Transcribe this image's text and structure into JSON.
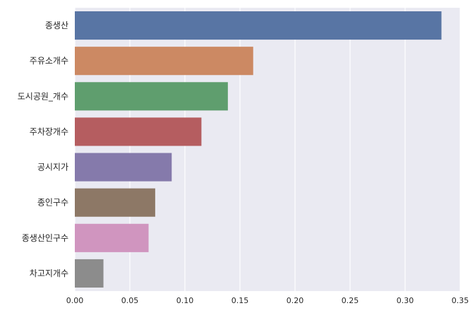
{
  "chart_data": {
    "type": "bar",
    "orientation": "horizontal",
    "categories": [
      "종생산",
      "주유소개수",
      "도시공원_개수",
      "주차장개수",
      "공시지가",
      "종인구수",
      "종생산인구수",
      "차고지개수"
    ],
    "values": [
      0.333,
      0.162,
      0.139,
      0.115,
      0.088,
      0.073,
      0.067,
      0.026
    ],
    "colors": [
      "#5875a4",
      "#cc8963",
      "#5f9e6e",
      "#b55d60",
      "#857aab",
      "#8d7866",
      "#d095bf",
      "#8c8c8c"
    ],
    "xlim": [
      0,
      0.35
    ],
    "x_ticks": [
      "0.00",
      "0.05",
      "0.10",
      "0.15",
      "0.20",
      "0.25",
      "0.30",
      "0.35"
    ],
    "title": "",
    "xlabel": "",
    "ylabel": "",
    "grid": "vertical",
    "background": "#eaeaf2"
  }
}
